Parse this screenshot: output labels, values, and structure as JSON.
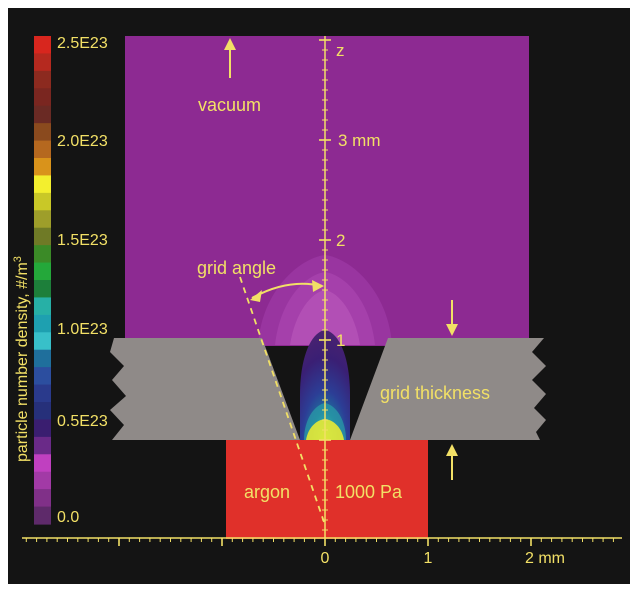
{
  "colorbar": {
    "title": "particle number density, #/m",
    "title_sup": "3",
    "ticks": [
      "2.5E23",
      "2.0E23",
      "1.5E23",
      "1.0E23",
      "0.5E23",
      "0.0"
    ],
    "colors": [
      "#d8261e",
      "#b5291f",
      "#8c2a1f",
      "#7a2620",
      "#6a2a24",
      "#8a4a1e",
      "#b5681f",
      "#d9931b",
      "#f3ef2e",
      "#c9c827",
      "#9e9e2a",
      "#6f7a26",
      "#3b8a27",
      "#24a83a",
      "#1d7f3a",
      "#27b0a6",
      "#1ea0b0",
      "#38c0c9",
      "#1f6f9c",
      "#2c4e9f",
      "#2a3a8c",
      "#26307a",
      "#3a1e70",
      "#6a2a88",
      "#c040c0",
      "#a23aa6",
      "#803088",
      "#5e2a6a"
    ]
  },
  "labels": {
    "vacuum": "vacuum",
    "argon": "argon",
    "pressure": "1000 Pa",
    "grid_angle": "grid angle",
    "grid_thickness": "grid thickness",
    "z_axis": "z",
    "z_3mm": "3 mm",
    "z_2": "2",
    "z_1": "1"
  },
  "x_axis": {
    "ticks": [
      "0",
      "1",
      "2 mm"
    ]
  },
  "colors": {
    "background": "#141414",
    "vacuum": "#8d2a92",
    "argon": "#e0302a",
    "grid": "#8f8a88",
    "text": "#f2e066"
  }
}
